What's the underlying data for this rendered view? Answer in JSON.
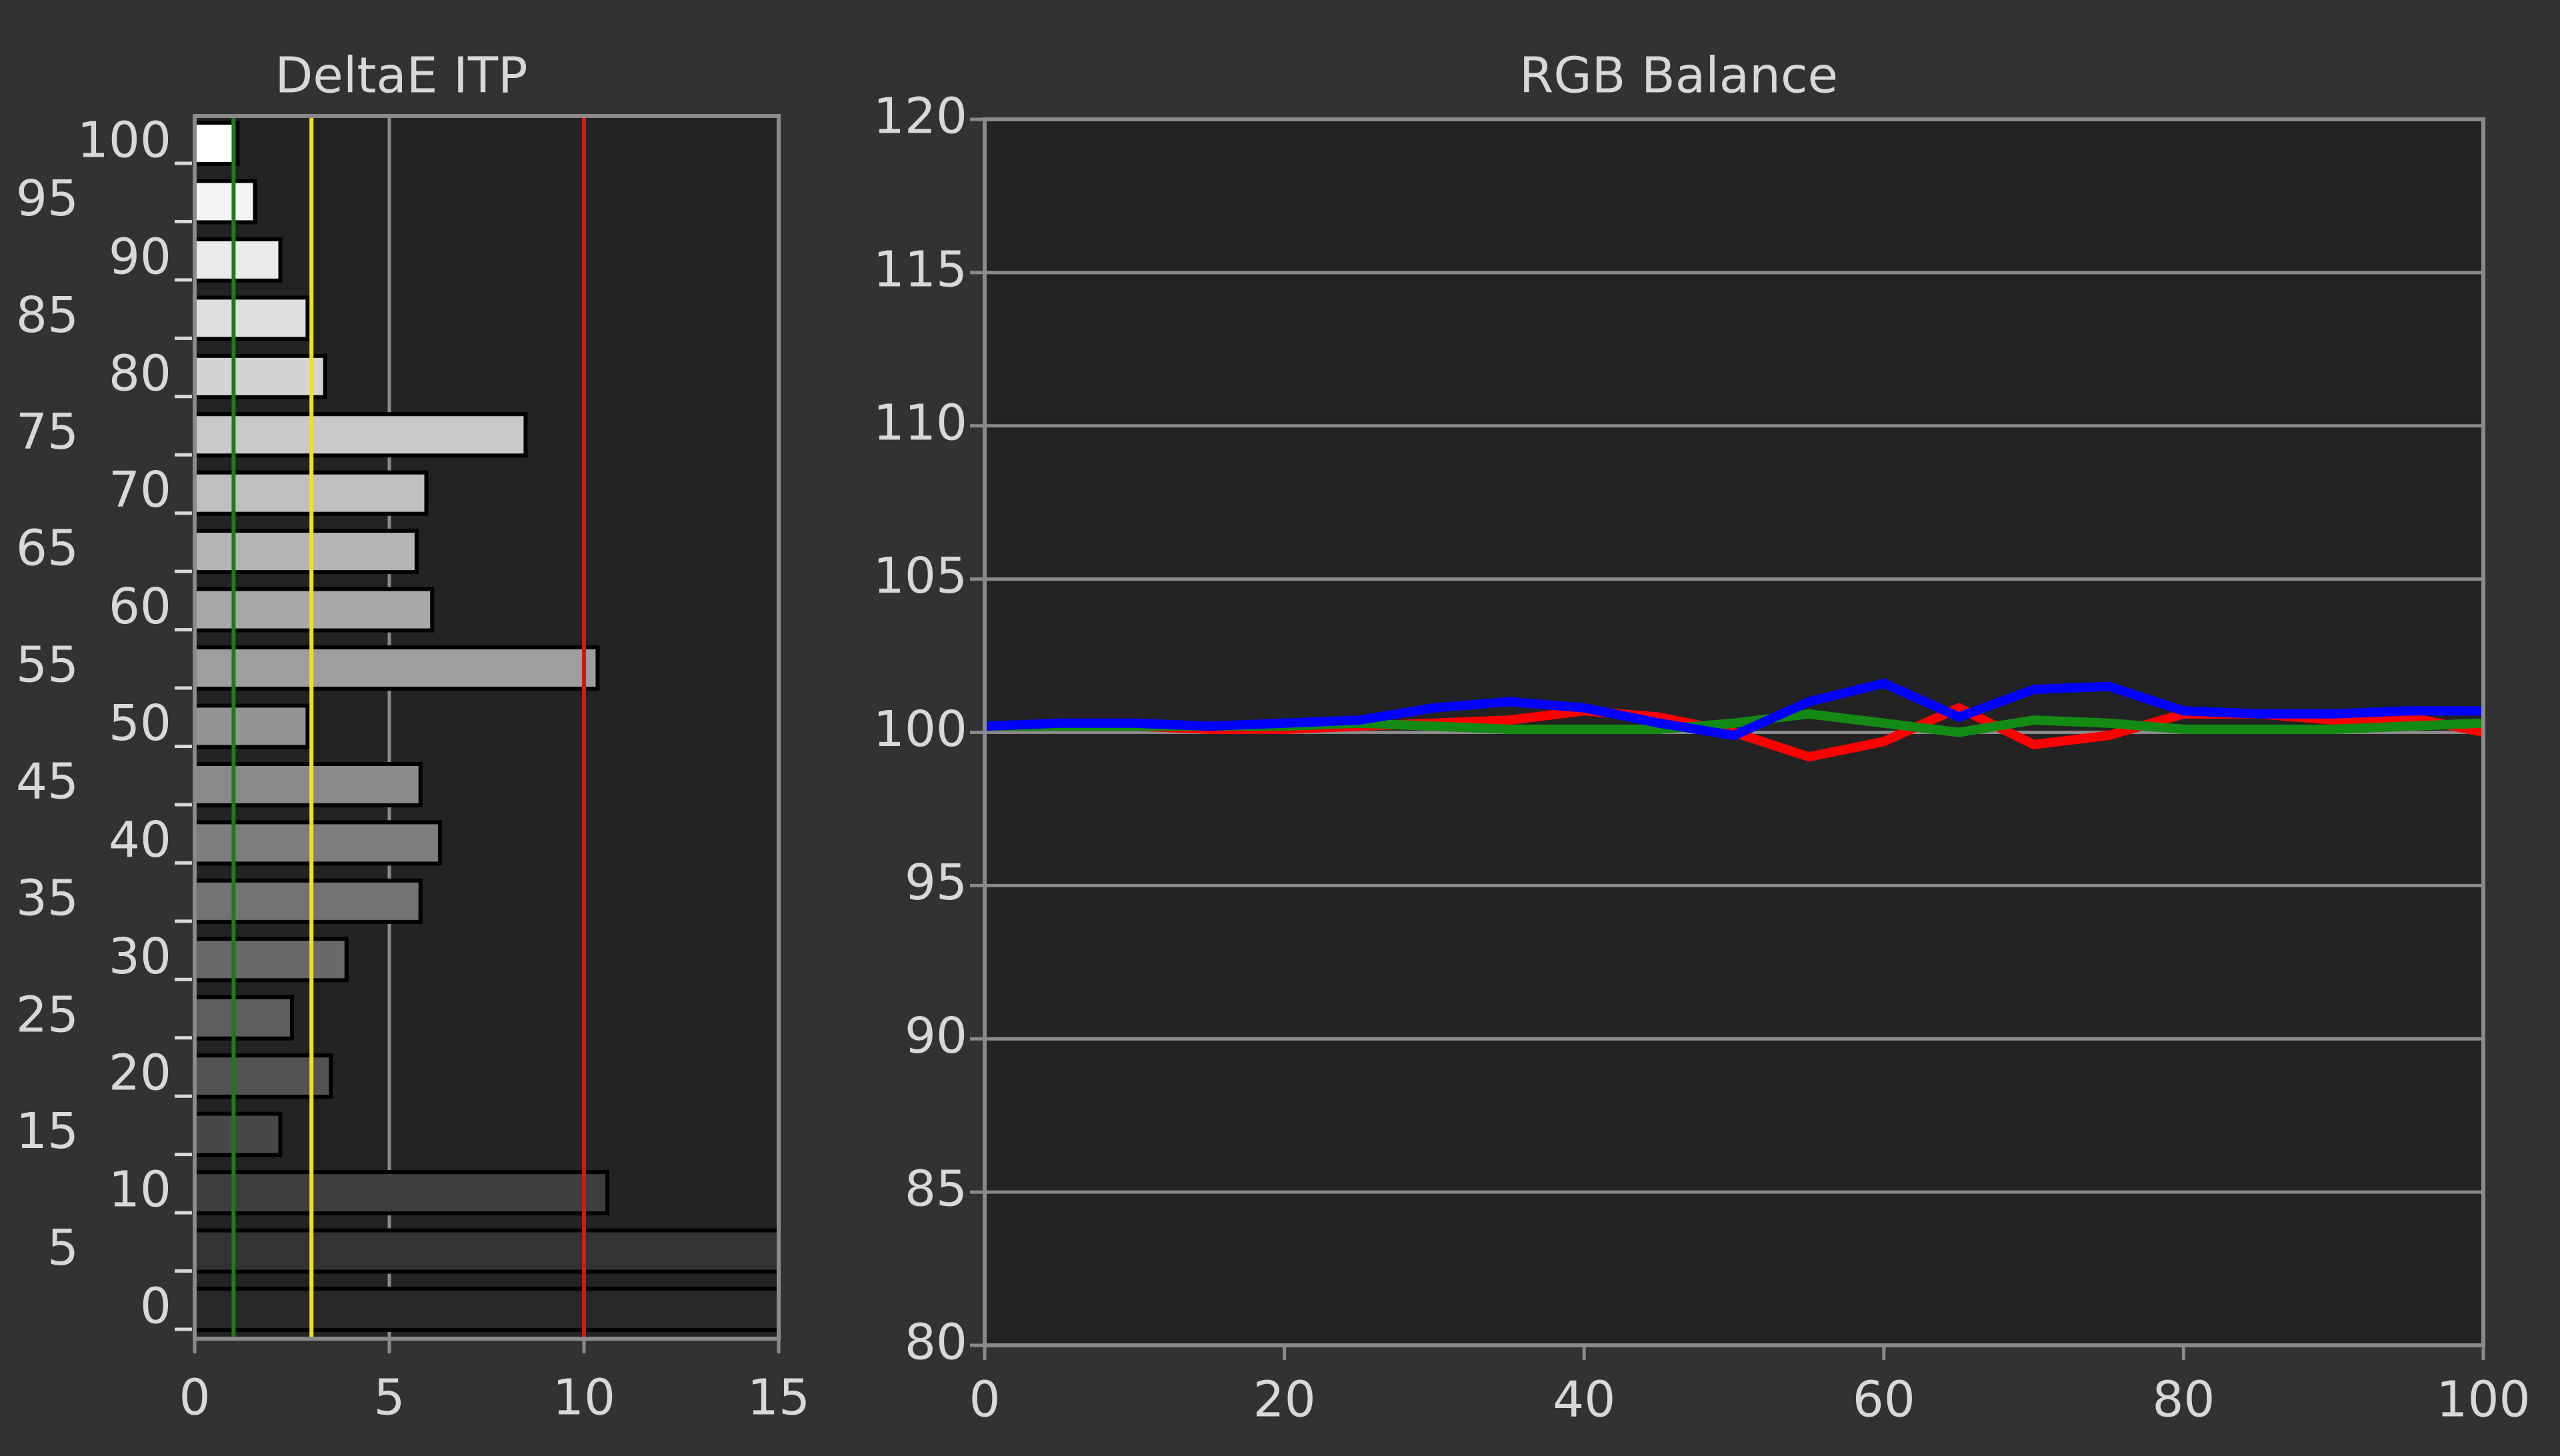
{
  "chart_data": [
    {
      "type": "barh",
      "title": "DeltaE ITP",
      "categories": [
        0,
        5,
        10,
        15,
        20,
        25,
        30,
        35,
        40,
        45,
        50,
        55,
        60,
        65,
        70,
        75,
        80,
        85,
        90,
        95,
        100
      ],
      "values": [
        15,
        15,
        10.6,
        2.2,
        3.5,
        2.5,
        3.9,
        5.8,
        6.3,
        5.8,
        2.9,
        10.35,
        6.1,
        5.7,
        5.95,
        8.5,
        3.35,
        2.9,
        2.2,
        1.55,
        1.1
      ],
      "xlim": [
        0,
        15
      ],
      "xticks": [
        0,
        5,
        10,
        15
      ],
      "grid": true,
      "thresholds": [
        {
          "value": 1,
          "color": "#1e7a1e"
        },
        {
          "value": 3,
          "color": "#f0e020"
        },
        {
          "value": 10,
          "color": "#d01818"
        }
      ]
    },
    {
      "type": "line",
      "title": "RGB Balance",
      "x": [
        0,
        5,
        10,
        15,
        20,
        25,
        30,
        35,
        40,
        45,
        50,
        55,
        60,
        65,
        70,
        75,
        80,
        85,
        90,
        95,
        100
      ],
      "series": [
        {
          "name": "Red",
          "color": "#ff0000",
          "values": [
            100.2,
            100.2,
            100.2,
            100.1,
            100.1,
            100.2,
            100.3,
            100.4,
            100.7,
            100.5,
            100.0,
            99.2,
            99.7,
            100.8,
            99.6,
            99.9,
            100.6,
            100.6,
            100.4,
            100.5,
            100.0
          ]
        },
        {
          "name": "Green",
          "color": "#138a13",
          "values": [
            100.2,
            100.2,
            100.2,
            100.2,
            100.2,
            100.3,
            100.2,
            100.1,
            100.1,
            100.1,
            100.3,
            100.6,
            100.3,
            100.0,
            100.4,
            100.3,
            100.1,
            100.1,
            100.1,
            100.2,
            100.3
          ]
        },
        {
          "name": "Blue",
          "color": "#0000ff",
          "values": [
            100.2,
            100.3,
            100.3,
            100.2,
            100.3,
            100.4,
            100.8,
            101.0,
            100.8,
            100.3,
            99.9,
            101.0,
            101.6,
            100.5,
            101.4,
            101.5,
            100.7,
            100.6,
            100.6,
            100.7,
            100.7
          ]
        }
      ],
      "xlim": [
        0,
        100
      ],
      "xticks": [
        0,
        20,
        40,
        60,
        80,
        100
      ],
      "ylim": [
        80,
        120
      ],
      "yticks": [
        80,
        85,
        90,
        95,
        100,
        105,
        110,
        115,
        120
      ],
      "grid": true
    }
  ]
}
